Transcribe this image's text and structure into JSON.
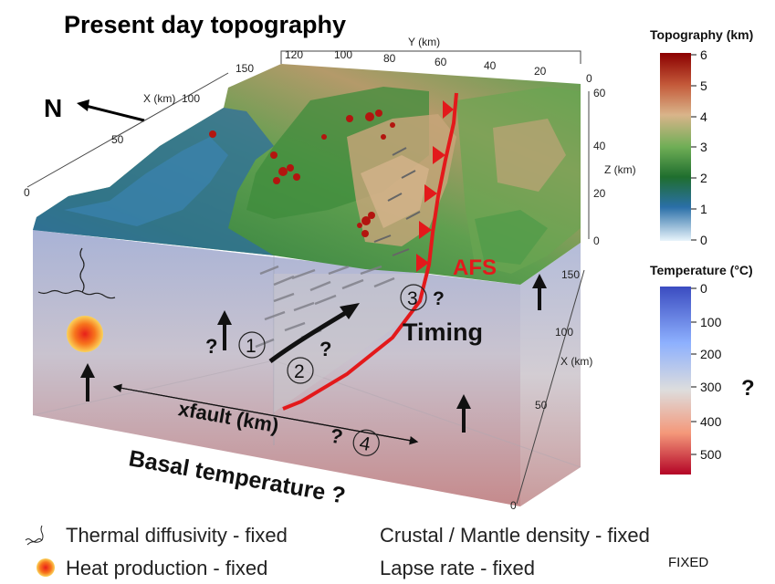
{
  "title": "Present day topography",
  "north_label": "N",
  "axes": {
    "y_label": "Y (km)",
    "y_ticks": [
      "120",
      "100",
      "80",
      "60",
      "40",
      "20",
      "0"
    ],
    "x_top_label": "X (km)",
    "x_top_ticks": [
      "150",
      "100",
      "50",
      "0"
    ],
    "x_right_label": "X (km)",
    "x_right_ticks": [
      "150",
      "100",
      "50",
      "0"
    ],
    "z_label": "Z (km)",
    "z_ticks": [
      "60",
      "40",
      "20",
      "0"
    ]
  },
  "fault_label": "AFS",
  "timing_label": "Timing",
  "markers": {
    "m1": "1",
    "m2": "2",
    "m3": "3",
    "m4": "4",
    "q1": "?",
    "q2": "?",
    "q3": "?",
    "q4": "?"
  },
  "xfault_label": "xfault (km)",
  "basal_label": "Basal temperature ?",
  "topo_bar": {
    "title": "Topography (km)",
    "ticks": [
      "6",
      "5",
      "4",
      "3",
      "2",
      "1",
      "0"
    ],
    "colors": [
      "#8b0000",
      "#c45a3a",
      "#d9b48a",
      "#6fae56",
      "#1f6e2e",
      "#2a6fa8",
      "#e8f4fb"
    ]
  },
  "temp_bar": {
    "title": "Temperature (°C)",
    "ticks": [
      "0",
      "100",
      "200",
      "300",
      "400",
      "500"
    ],
    "question": "?",
    "colors": [
      "#3b4cc0",
      "#8db0fe",
      "#dddddd",
      "#f4987a",
      "#b40426"
    ]
  },
  "legend": {
    "thermal": "Thermal diffusivity - fixed",
    "heat": "Heat production - fixed",
    "density": "Crustal / Mantle density - fixed",
    "lapse": "Lapse rate - fixed",
    "fixed_tag": "FIXED"
  }
}
